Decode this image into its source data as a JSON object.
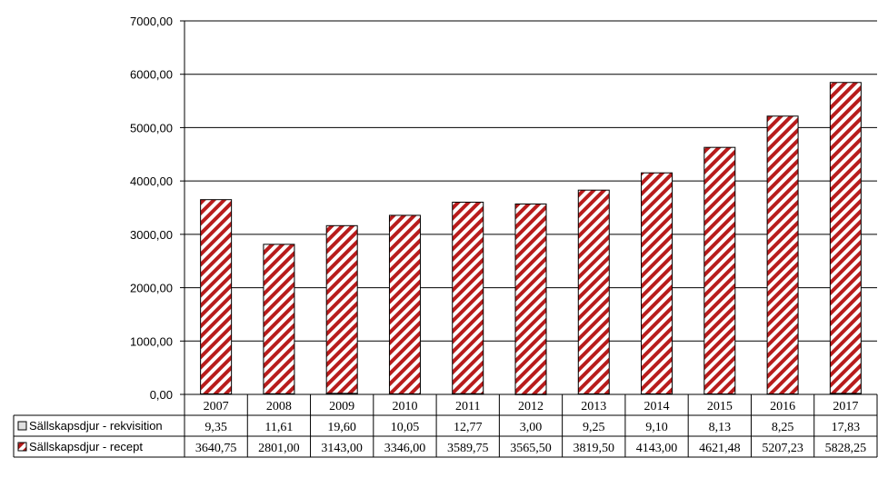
{
  "chart_data": {
    "type": "bar",
    "stacked": true,
    "categories": [
      "2007",
      "2008",
      "2009",
      "2010",
      "2011",
      "2012",
      "2013",
      "2014",
      "2015",
      "2016",
      "2017"
    ],
    "series": [
      {
        "name": "Sällskapsdjur - rekvisition",
        "values": [
          9.35,
          11.61,
          19.6,
          10.05,
          12.77,
          3.0,
          9.25,
          9.1,
          8.13,
          8.25,
          17.83
        ],
        "labels": [
          "9,35",
          "11,61",
          "19,60",
          "10,05",
          "12,77",
          "3,00",
          "9,25",
          "9,10",
          "8,13",
          "8,25",
          "17,83"
        ],
        "color": "#e0e0e0"
      },
      {
        "name": "Sällskapsdjur - recept",
        "values": [
          3640.75,
          2801.0,
          3143.0,
          3346.0,
          3589.75,
          3565.5,
          3819.5,
          4143.0,
          4621.48,
          5207.23,
          5828.25
        ],
        "labels": [
          "3640,75",
          "2801,00",
          "3143,00",
          "3346,00",
          "3589,75",
          "3565,50",
          "3819,50",
          "4143,00",
          "4621,48",
          "5207,23",
          "5828,25"
        ],
        "color": "#b81c1c"
      }
    ],
    "ylim": [
      0,
      7000
    ],
    "yticks": [
      0,
      1000,
      2000,
      3000,
      4000,
      5000,
      6000,
      7000
    ],
    "ytick_labels": [
      "0,00",
      "1000,00",
      "2000,00",
      "3000,00",
      "4000,00",
      "5000,00",
      "6000,00",
      "7000,00"
    ],
    "grid": true,
    "legend": "data-table-left"
  }
}
